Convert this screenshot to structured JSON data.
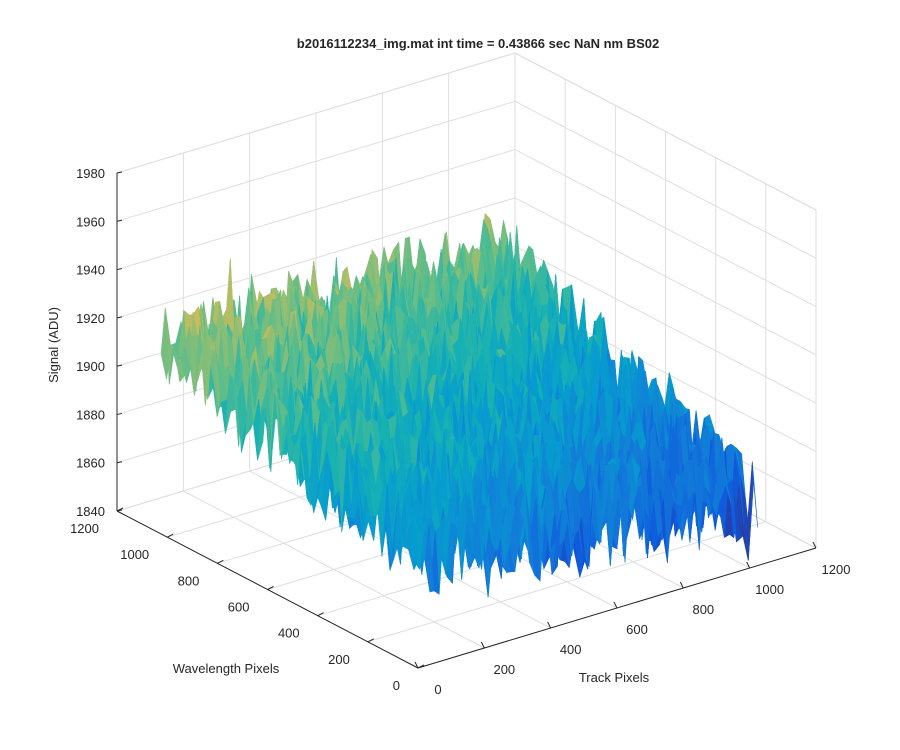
{
  "chart_data": {
    "type": "surface",
    "title": "b2016112234_img.mat int time = 0.43866 sec  NaN nm BS02",
    "xlabel": "Track Pixels",
    "ylabel": "Wavelength Pixels",
    "zlabel": "Signal (ADU)",
    "xlim": [
      0,
      1200
    ],
    "ylim": [
      0,
      1200
    ],
    "zlim": [
      1840,
      1980
    ],
    "xticks": [
      "0",
      "200",
      "400",
      "600",
      "800",
      "1000",
      "1200"
    ],
    "yticks": [
      "0",
      "200",
      "400",
      "600",
      "800",
      "1000",
      "1200"
    ],
    "zticks": [
      "1840",
      "1860",
      "1880",
      "1900",
      "1920",
      "1940",
      "1960",
      "1980"
    ],
    "grid": true,
    "colormap": "parula",
    "surface_extent": {
      "x": [
        0,
        1024
      ],
      "y": [
        0,
        1024
      ]
    },
    "surface_level": {
      "corner_x0_y0": 1889,
      "corner_x1024_y0": 1865,
      "corner_x0_y1024": 1920,
      "corner_x1024_y1024": 1912,
      "noise_peak_to_peak": 40
    }
  }
}
